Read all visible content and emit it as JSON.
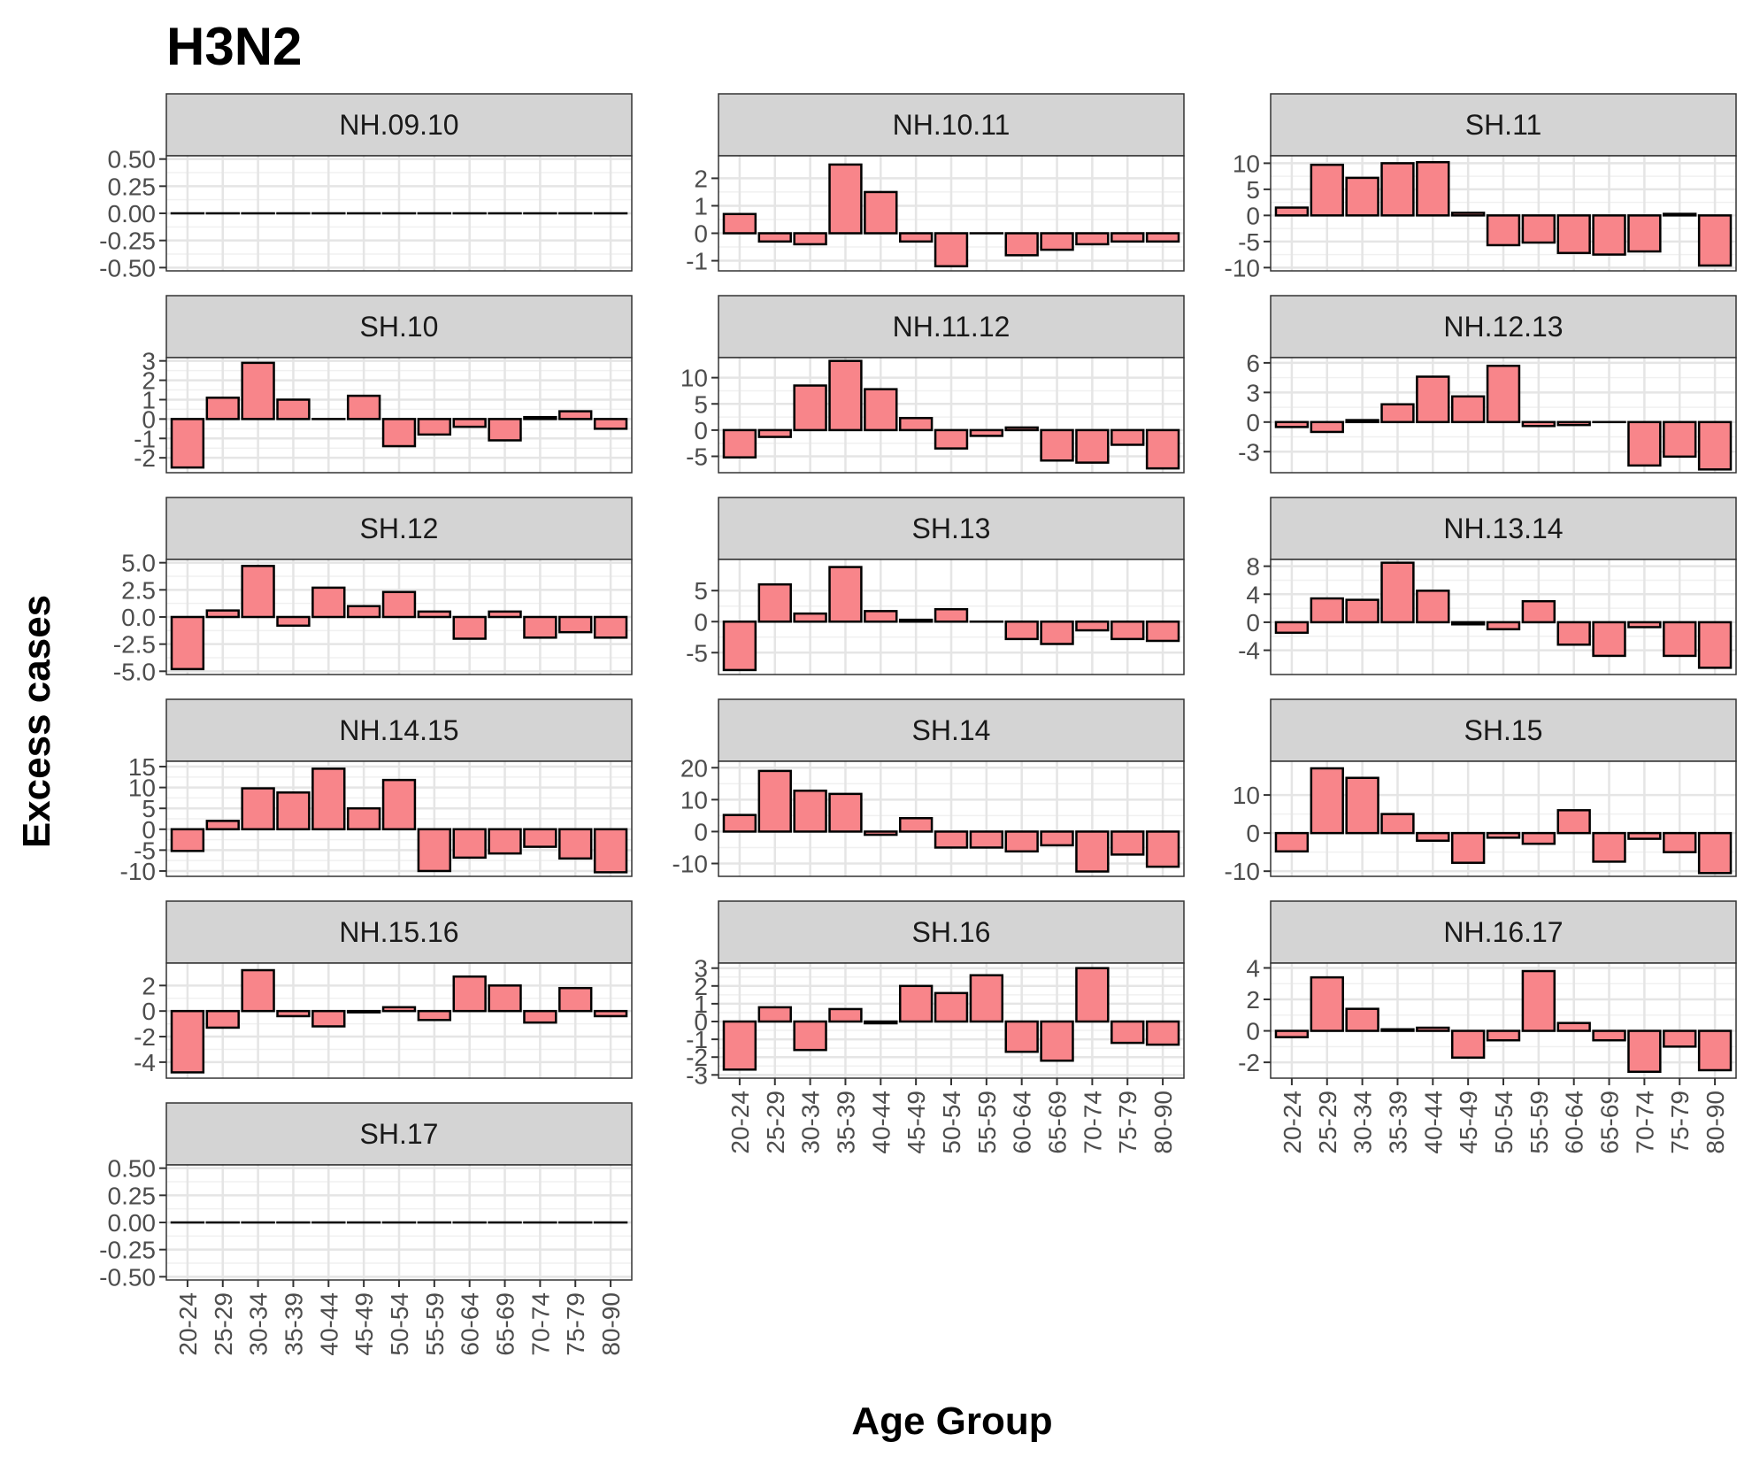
{
  "chart_data": {
    "type": "bar",
    "title": "H3N2",
    "xlabel": "Age Group",
    "ylabel": "Excess cases",
    "grid": true,
    "legend": "none",
    "colors": {
      "bar_fill": "#F8858A",
      "bar_stroke": "#000000",
      "strip_fill": "#D4D4D4",
      "grid": "#E5E5E5",
      "panel_border": "#333333"
    },
    "categories": [
      "20-24",
      "25-29",
      "30-34",
      "35-39",
      "40-44",
      "45-49",
      "50-54",
      "55-59",
      "60-64",
      "65-69",
      "70-74",
      "75-79",
      "80-90"
    ],
    "panels": [
      {
        "name": "NH.09.10",
        "ylim": [
          -0.5,
          0.5
        ],
        "ticks": [
          0.5,
          0.25,
          0,
          -0.25,
          -0.5
        ],
        "tick_labels": [
          "0.50",
          "0.25",
          "0.00",
          "-0.25",
          "-0.50"
        ],
        "values": [
          0,
          0,
          0,
          0,
          0,
          0,
          0,
          0,
          0,
          0,
          0,
          0,
          0
        ]
      },
      {
        "name": "NH.10.11",
        "ylim": [
          -1.25,
          2.7
        ],
        "ticks": [
          2,
          1,
          0,
          -1
        ],
        "tick_labels": [
          "2",
          "1",
          "0",
          "-1"
        ],
        "values": [
          0.7,
          -0.3,
          -0.4,
          2.5,
          1.5,
          -0.3,
          -1.2,
          0,
          -0.8,
          -0.6,
          -0.4,
          -0.3,
          -0.3
        ]
      },
      {
        "name": "SH.11",
        "ylim": [
          -10,
          10.8
        ],
        "ticks": [
          10,
          5,
          0,
          -5,
          -10
        ],
        "tick_labels": [
          "10",
          "5",
          "0",
          "-5",
          "-10"
        ],
        "values": [
          1.5,
          9.7,
          7.2,
          10,
          10.2,
          0.5,
          -5.7,
          -5.2,
          -7.2,
          -7.5,
          -6.9,
          0.3,
          -9.6
        ]
      },
      {
        "name": "SH.10",
        "ylim": [
          -2.6,
          3
        ],
        "ticks": [
          3,
          2,
          1,
          0,
          -1,
          -2
        ],
        "tick_labels": [
          "3",
          "2",
          "1",
          "0",
          "-1",
          "-2"
        ],
        "values": [
          -2.5,
          1.1,
          2.9,
          1,
          0,
          1.2,
          -1.4,
          -0.8,
          -0.4,
          -1.1,
          0.1,
          0.4,
          -0.5
        ]
      },
      {
        "name": "NH.11.12",
        "ylim": [
          -7.5,
          13.2
        ],
        "ticks": [
          10,
          5,
          0,
          -5
        ],
        "tick_labels": [
          "10",
          "5",
          "0",
          "-5"
        ],
        "values": [
          -5.2,
          -1.3,
          8.5,
          13.2,
          7.8,
          2.3,
          -3.5,
          -1.1,
          0.5,
          -5.8,
          -6.2,
          -2.8,
          -7.3
        ]
      },
      {
        "name": "NH.12.13",
        "ylim": [
          -4.8,
          6.2
        ],
        "ticks": [
          6,
          3,
          0,
          -3
        ],
        "tick_labels": [
          "6",
          "3",
          "0",
          "-3"
        ],
        "values": [
          -0.5,
          -1,
          0.2,
          1.8,
          4.6,
          2.6,
          5.7,
          -0.4,
          -0.3,
          0,
          -4.4,
          -3.5,
          -4.8
        ]
      },
      {
        "name": "SH.12",
        "ylim": [
          -5,
          5
        ],
        "ticks": [
          5,
          2.5,
          0,
          -2.5,
          -5
        ],
        "tick_labels": [
          "5.0",
          "2.5",
          "0.0",
          "-2.5",
          "-5.0"
        ],
        "values": [
          -4.8,
          0.6,
          4.7,
          -0.8,
          2.7,
          1,
          2.3,
          0.5,
          -2,
          0.5,
          -1.9,
          -1.4,
          -1.9
        ]
      },
      {
        "name": "SH.13",
        "ylim": [
          -8,
          9.5
        ],
        "ticks": [
          5,
          0,
          -5
        ],
        "tick_labels": [
          "5",
          "0",
          "-5"
        ],
        "values": [
          -7.8,
          6,
          1.3,
          8.8,
          1.7,
          0.3,
          2,
          0,
          -2.8,
          -3.6,
          -1.4,
          -2.8,
          -3.1
        ]
      },
      {
        "name": "NH.13.14",
        "ylim": [
          -7,
          8.5
        ],
        "ticks": [
          8,
          4,
          0,
          -4
        ],
        "tick_labels": [
          "8",
          "4",
          "0",
          "-4"
        ],
        "values": [
          -1.5,
          3.4,
          3.2,
          8.5,
          4.5,
          -0.3,
          -1,
          3,
          -3.2,
          -4.8,
          -0.7,
          -4.8,
          -6.5
        ]
      },
      {
        "name": "NH.14.15",
        "ylim": [
          -10.5,
          15.5
        ],
        "ticks": [
          15,
          10,
          5,
          0,
          -5,
          -10
        ],
        "tick_labels": [
          "15",
          "10",
          "5",
          "0",
          "-5",
          "-10"
        ],
        "values": [
          -5.2,
          2,
          9.8,
          8.8,
          14.5,
          5,
          11.8,
          -10,
          -6.8,
          -5.8,
          -4.2,
          -7,
          -10.3
        ]
      },
      {
        "name": "SH.14",
        "ylim": [
          -13,
          21
        ],
        "ticks": [
          20,
          10,
          0,
          -10
        ],
        "tick_labels": [
          "20",
          "10",
          "0",
          "-10"
        ],
        "values": [
          5.2,
          19,
          12.8,
          11.8,
          -1,
          4.2,
          -5,
          -5,
          -6.2,
          -4.3,
          -12.5,
          -7.2,
          -11
        ]
      },
      {
        "name": "SH.15",
        "ylim": [
          -10.5,
          18
        ],
        "ticks": [
          10,
          0,
          -10
        ],
        "tick_labels": [
          "10",
          "0",
          "-10"
        ],
        "values": [
          -4.8,
          17,
          14.5,
          5,
          -2,
          -7.8,
          -1.2,
          -2.8,
          6,
          -7.5,
          -1.5,
          -5,
          -10.5
        ]
      },
      {
        "name": "NH.15.16",
        "ylim": [
          -5,
          3.5
        ],
        "ticks": [
          2,
          0,
          -2,
          -4
        ],
        "tick_labels": [
          "2",
          "0",
          "-2",
          "-4"
        ],
        "values": [
          -4.8,
          -1.3,
          3.2,
          -0.4,
          -1.2,
          -0.1,
          0.3,
          -0.7,
          2.7,
          2,
          -0.9,
          1.8,
          -0.4
        ]
      },
      {
        "name": "SH.16",
        "ylim": [
          -3,
          3.1
        ],
        "ticks": [
          3,
          2,
          1,
          0,
          -1,
          -2,
          -3
        ],
        "tick_labels": [
          "3",
          "2",
          "1",
          "0",
          "-1",
          "-2",
          "-3"
        ],
        "values": [
          -2.7,
          0.8,
          -1.6,
          0.7,
          -0.1,
          2,
          1.6,
          2.6,
          -1.7,
          -2.2,
          3,
          -1.2,
          -1.3
        ]
      },
      {
        "name": "NH.16.17",
        "ylim": [
          -2.8,
          4.1
        ],
        "ticks": [
          4,
          2,
          0,
          -2
        ],
        "tick_labels": [
          "4",
          "2",
          "0",
          "-2"
        ],
        "values": [
          -0.4,
          3.4,
          1.4,
          0.1,
          0.2,
          -1.7,
          -0.6,
          3.8,
          0.5,
          -0.6,
          -2.6,
          -1,
          -2.5
        ]
      },
      {
        "name": "SH.17",
        "ylim": [
          -0.5,
          0.5
        ],
        "ticks": [
          0.5,
          0.25,
          0,
          -0.25,
          -0.5
        ],
        "tick_labels": [
          "0.50",
          "0.25",
          "0.00",
          "-0.25",
          "-0.50"
        ],
        "values": [
          0,
          0,
          0,
          0,
          0,
          0,
          0,
          0,
          0,
          0,
          0,
          0,
          0
        ]
      }
    ]
  }
}
